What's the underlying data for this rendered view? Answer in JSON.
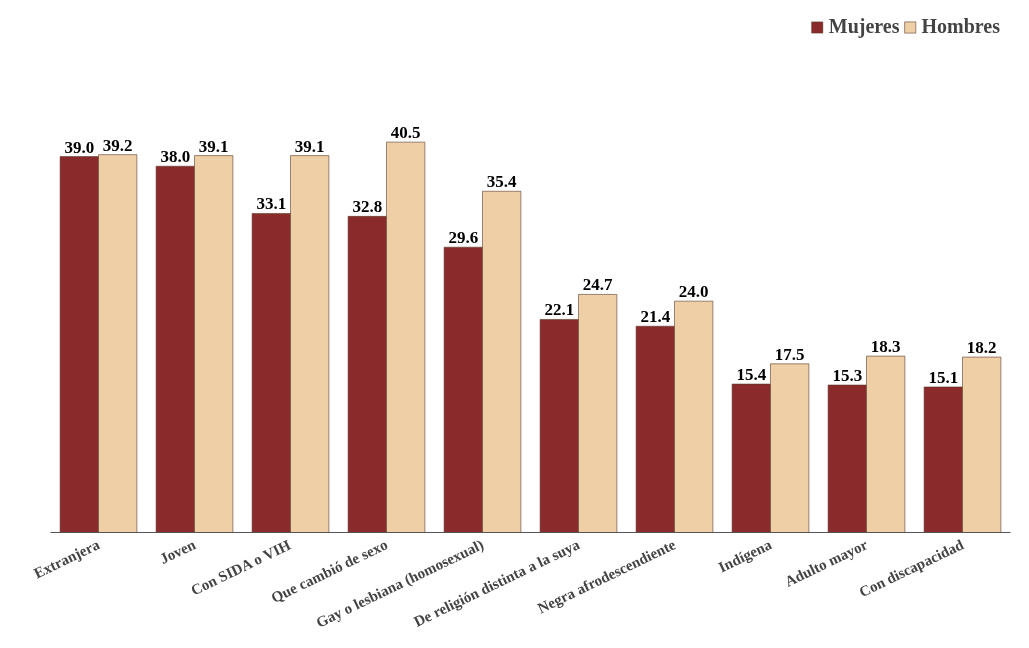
{
  "chart_data": {
    "type": "bar",
    "categories": [
      "Extranjera",
      "Joven",
      "Con SIDA o VIH",
      "Que cambió de sexo",
      "Gay o lesbiana (homosexual)",
      "De religión distinta a la suya",
      "Negra afrodescendiente",
      "Indígena",
      "Adulto mayor",
      "Con discapacidad"
    ],
    "series": [
      {
        "name": "Mujeres",
        "color": "#8b2a2a",
        "values": [
          39.0,
          38.0,
          33.1,
          32.8,
          29.6,
          22.1,
          21.4,
          15.4,
          15.3,
          15.1
        ],
        "value_labels": [
          "39.0",
          "38.0",
          "33.1",
          "32.8",
          "29.6",
          "22.1",
          "21.4",
          "15.4",
          "15.3",
          "15.1"
        ]
      },
      {
        "name": "Hombres",
        "color": "#efcfa6",
        "values": [
          39.2,
          39.1,
          39.1,
          40.5,
          35.4,
          24.7,
          24.0,
          17.5,
          18.3,
          18.2
        ],
        "value_labels": [
          "39.2",
          "39.1",
          "39.1",
          "40.5",
          "35.4",
          "24.7",
          "24.0",
          "17.5",
          "18.3",
          "18.2"
        ]
      }
    ],
    "legend": "top right",
    "grid": false
  }
}
